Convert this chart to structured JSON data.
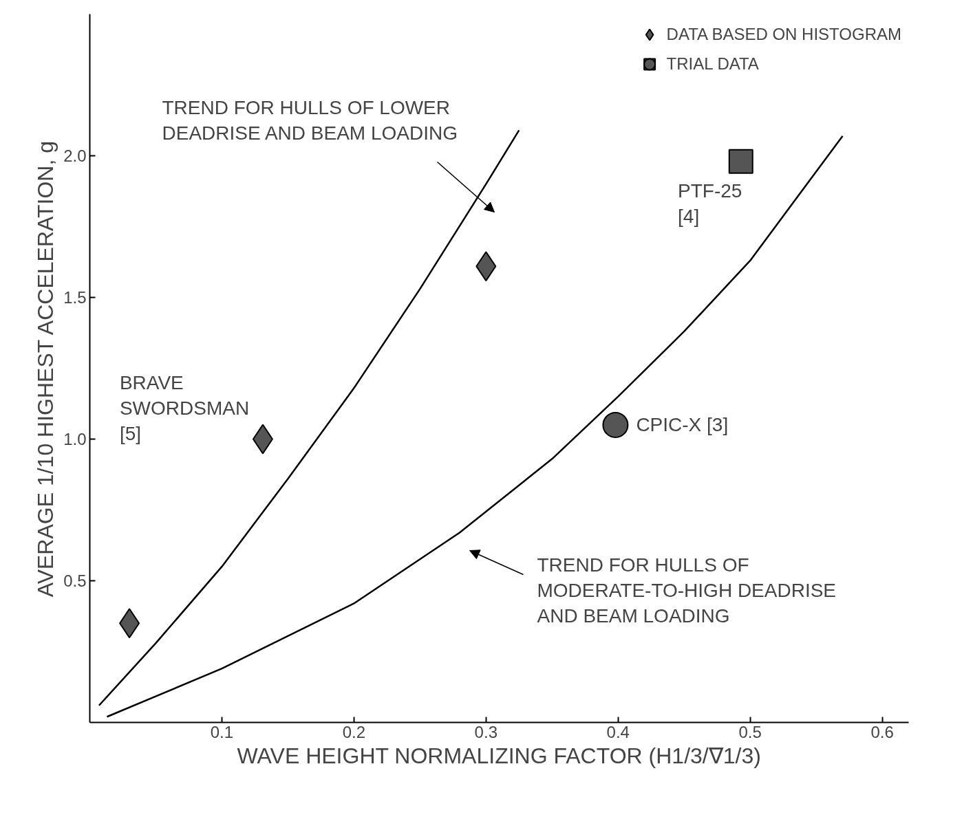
{
  "chart_data": {
    "type": "scatter",
    "xlabel": "WAVE HEIGHT NORMALIZING FACTOR (H1/3/∇1/3)",
    "ylabel": "AVERAGE 1/10 HIGHEST ACCELERATION, g",
    "xlim": [
      0,
      0.62
    ],
    "ylim": [
      0,
      2.5
    ],
    "xticks": [
      {
        "value": 0.1,
        "label": "0.1"
      },
      {
        "value": 0.2,
        "label": "0.2"
      },
      {
        "value": 0.3,
        "label": "0.3"
      },
      {
        "value": 0.4,
        "label": "0.4"
      },
      {
        "value": 0.5,
        "label": "0.5"
      },
      {
        "value": 0.6,
        "label": "0.6"
      }
    ],
    "yticks": [
      {
        "value": 0.5,
        "label": "0.5"
      },
      {
        "value": 1.0,
        "label": "1.0"
      },
      {
        "value": 1.5,
        "label": "1.5"
      },
      {
        "value": 2.0,
        "label": "2.0"
      }
    ],
    "grid": false,
    "legend": "top right",
    "series": [
      {
        "type": "line",
        "color": "#000000",
        "marker": "none",
        "line_style": "solid",
        "x": [
          0.007,
          0.05,
          0.1,
          0.15,
          0.2,
          0.25,
          0.3,
          0.325
        ],
        "values": [
          0.06,
          0.28,
          0.55,
          0.86,
          1.18,
          1.53,
          1.9,
          2.09
        ]
      },
      {
        "type": "line",
        "color": "#000000",
        "marker": "none",
        "line_style": "solid",
        "x": [
          0.013,
          0.1,
          0.2,
          0.28,
          0.35,
          0.4,
          0.45,
          0.5,
          0.57
        ],
        "values": [
          0.02,
          0.19,
          0.42,
          0.67,
          0.93,
          1.15,
          1.38,
          1.63,
          2.07
        ]
      },
      {
        "name": "DATA BASED ON HISTOGRAM",
        "color": "#555555",
        "marker": "diamond",
        "x": [
          0.03,
          0.131,
          0.3
        ],
        "values": [
          0.35,
          1.0,
          1.61
        ]
      },
      {
        "name": "TRIAL DATA",
        "color": "#555555",
        "marker": "square",
        "x": [
          0.493
        ],
        "values": [
          1.98
        ]
      },
      {
        "color": "#555555",
        "marker": "circle",
        "x": [
          0.398
        ],
        "values": [
          1.05
        ]
      }
    ],
    "annotations": [
      "TREND FOR HULLS OF LOWER DEADRISE AND BEAM LOADING",
      "TREND FOR HULLS OF MODERATE-TO-HIGH DEADRISE AND BEAM LOADING",
      {
        "text": "BRAVE SWORDSMAN [5]",
        "x": 0.131,
        "y": 1.0
      },
      {
        "text": "PTF-25 [4]",
        "x": 0.493,
        "y": 1.98
      },
      {
        "text": "CPIC-X [3]",
        "x": 0.398,
        "y": 1.05
      }
    ]
  }
}
